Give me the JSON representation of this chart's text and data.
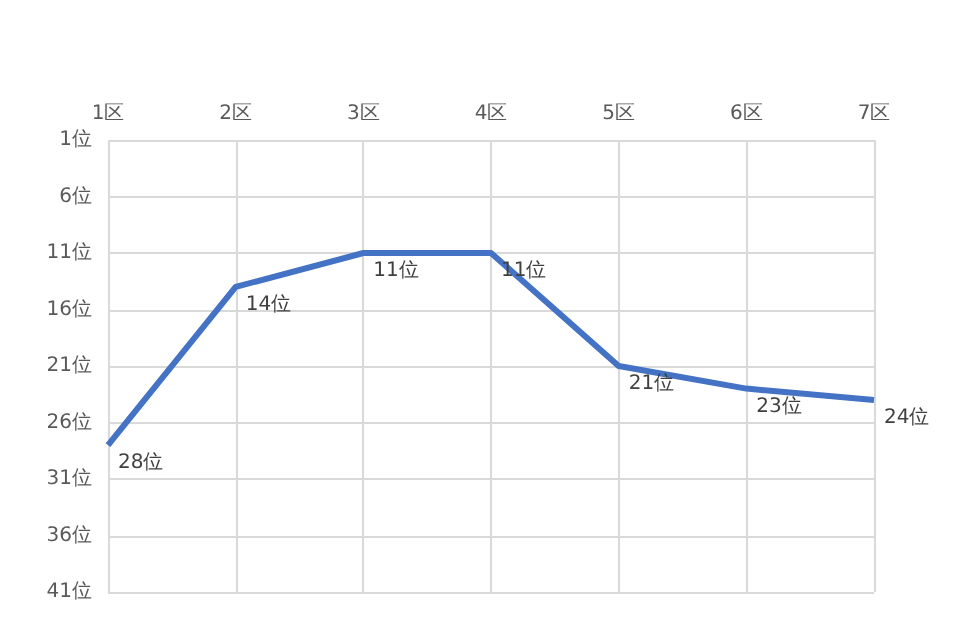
{
  "chart_data": {
    "type": "line",
    "categories": [
      "1区",
      "2区",
      "3区",
      "4区",
      "5区",
      "6区",
      "7区"
    ],
    "series": [
      {
        "color": "#4472c4",
        "values": [
          28,
          14,
          11,
          11,
          21,
          23,
          24
        ],
        "value_labels": [
          "28位",
          "14位",
          "11位",
          "11位",
          "21位",
          "23位",
          "24位"
        ]
      }
    ],
    "ylim": [
      41,
      1
    ],
    "yticks": [
      {
        "value": 1,
        "label": "1位"
      },
      {
        "value": 6,
        "label": "6位"
      },
      {
        "value": 11,
        "label": "11位"
      },
      {
        "value": 16,
        "label": "16位"
      },
      {
        "value": 21,
        "label": "21位"
      },
      {
        "value": 26,
        "label": "26位"
      },
      {
        "value": 31,
        "label": "31位"
      },
      {
        "value": 36,
        "label": "36位"
      },
      {
        "value": 41,
        "label": "41位"
      }
    ],
    "grid": true,
    "marker": "none",
    "line_style": "solid"
  }
}
